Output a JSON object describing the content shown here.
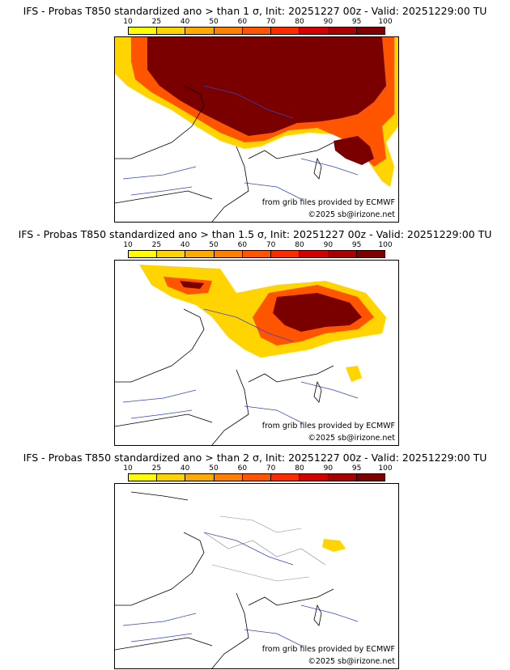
{
  "colorbar": {
    "labels": [
      "10",
      "25",
      "40",
      "50",
      "60",
      "70",
      "80",
      "90",
      "95",
      "100"
    ],
    "colors": [
      "#ffff00",
      "#ffd400",
      "#ffaa00",
      "#ff8000",
      "#ff5500",
      "#ff2a00",
      "#d40000",
      "#aa0000",
      "#800000"
    ]
  },
  "panels": [
    {
      "title": "IFS - Probas T850  standardized ano > than 1 σ, Init: 20251227 00z - Valid: 20251229:00 TU",
      "source": "from grib files provided by ECMWF",
      "copyright": "©2025 sb@irizone.net",
      "threshold_sigma": 1
    },
    {
      "title": "IFS - Probas T850  standardized ano > than 1.5 σ, Init: 20251227 00z - Valid: 20251229:00 TU",
      "source": "from grib files provided by ECMWF",
      "copyright": "©2025 sb@irizone.net",
      "threshold_sigma": 1.5
    },
    {
      "title": "IFS - Probas T850  standardized ano > than 2 σ, Init: 20251227 00z - Valid: 20251229:00 TU",
      "source": "from grib files provided by ECMWF",
      "copyright": "©2025 sb@irizone.net",
      "threshold_sigma": 2
    }
  ]
}
